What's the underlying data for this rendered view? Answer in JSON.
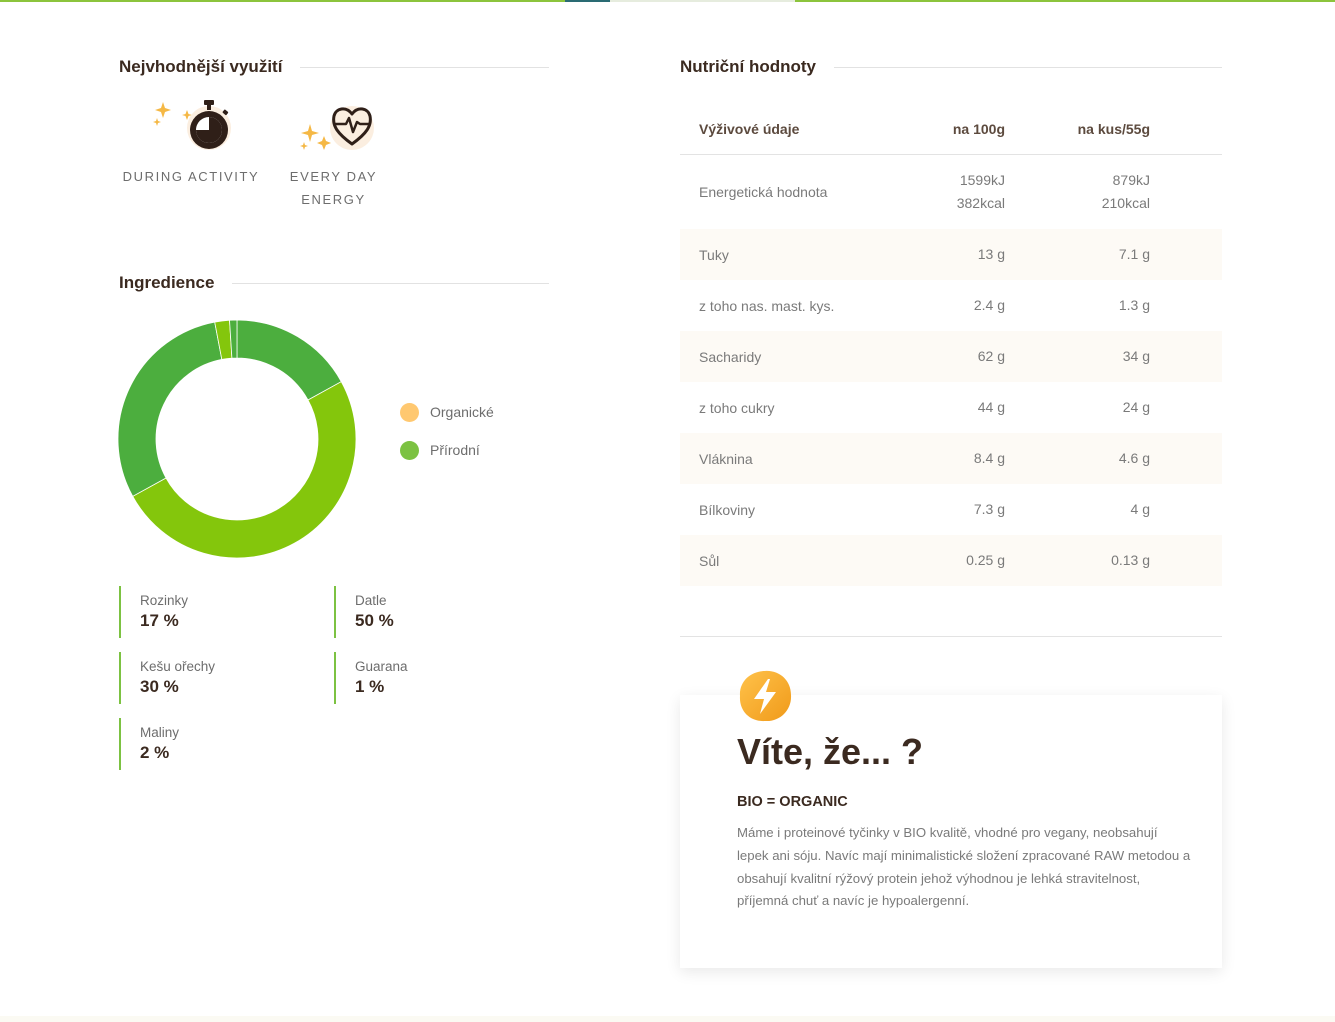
{
  "usage": {
    "title": "Nejvhodnější využití",
    "items": [
      {
        "label_line1": "DURING ACTIVITY",
        "label_line2": "",
        "icon": "stopwatch-icon"
      },
      {
        "label_line1": "EVERY DAY",
        "label_line2": "ENERGY",
        "icon": "heart-pulse-icon"
      }
    ]
  },
  "ingredients": {
    "title": "Ingredience",
    "legend": [
      {
        "label": "Organické",
        "color": "#ffc870"
      },
      {
        "label": "Přírodní",
        "color": "#7cc242"
      }
    ],
    "items": [
      {
        "name": "Rozinky",
        "percent": "17 %"
      },
      {
        "name": "Datle",
        "percent": "50 %"
      },
      {
        "name": "Kešu ořechy",
        "percent": "30 %"
      },
      {
        "name": "Guarana",
        "percent": "1 %"
      },
      {
        "name": "Maliny",
        "percent": "2 %"
      }
    ]
  },
  "chart_data": {
    "type": "pie",
    "donut": true,
    "slices": [
      {
        "label": "Rozinky",
        "value": 17,
        "color": "#4cae3e"
      },
      {
        "label": "Datle",
        "value": 50,
        "color": "#84c60c"
      },
      {
        "label": "Kešu ořechy",
        "value": 30,
        "color": "#4cae3e"
      },
      {
        "label": "Maliny",
        "value": 2,
        "color": "#84c60c"
      },
      {
        "label": "Guarana",
        "value": 1,
        "color": "#4cae3e"
      }
    ]
  },
  "nutrition": {
    "title": "Nutriční hodnoty",
    "headers": {
      "name": "Výživové údaje",
      "per100": "na 100g",
      "perPiece": "na kus/55g"
    },
    "energy": {
      "name": "Energetická hodnota",
      "per100_kj": "1599kJ",
      "per100_kcal": "382kcal",
      "perPiece_kj": "879kJ",
      "perPiece_kcal": "210kcal"
    },
    "rows": [
      {
        "name": "Tuky",
        "per100": "13 g",
        "perPiece": "7.1 g"
      },
      {
        "name": "z toho nas. mast. kys.",
        "per100": "2.4 g",
        "perPiece": "1.3 g"
      },
      {
        "name": "Sacharidy",
        "per100": "62 g",
        "perPiece": "34 g"
      },
      {
        "name": "z toho cukry",
        "per100": "44 g",
        "perPiece": "24 g"
      },
      {
        "name": "Vláknina",
        "per100": "8.4 g",
        "perPiece": "4.6 g"
      },
      {
        "name": "Bílkoviny",
        "per100": "7.3 g",
        "perPiece": "4 g"
      },
      {
        "name": "Sůl",
        "per100": "0.25 g",
        "perPiece": "0.13 g"
      }
    ]
  },
  "info": {
    "icon": "lightning-icon",
    "title": "Víte, že... ?",
    "subtitle": "BIO = ORGANIC",
    "text": "Máme i proteinové tyčinky v BIO kvalitě, vhodné pro vegany, neobsahují lepek ani sóju. Navíc mají minimalistické složení zpracované RAW metodou a obsahují kvalitní rýžový protein jehož výhodnou je lehká stravitelnost, příjemná chuť a navíc je hypoalergenní."
  },
  "colors": {
    "accent_green": "#7cc242",
    "accent_orange": "#f5a623",
    "dark_brown": "#3b2a20"
  }
}
